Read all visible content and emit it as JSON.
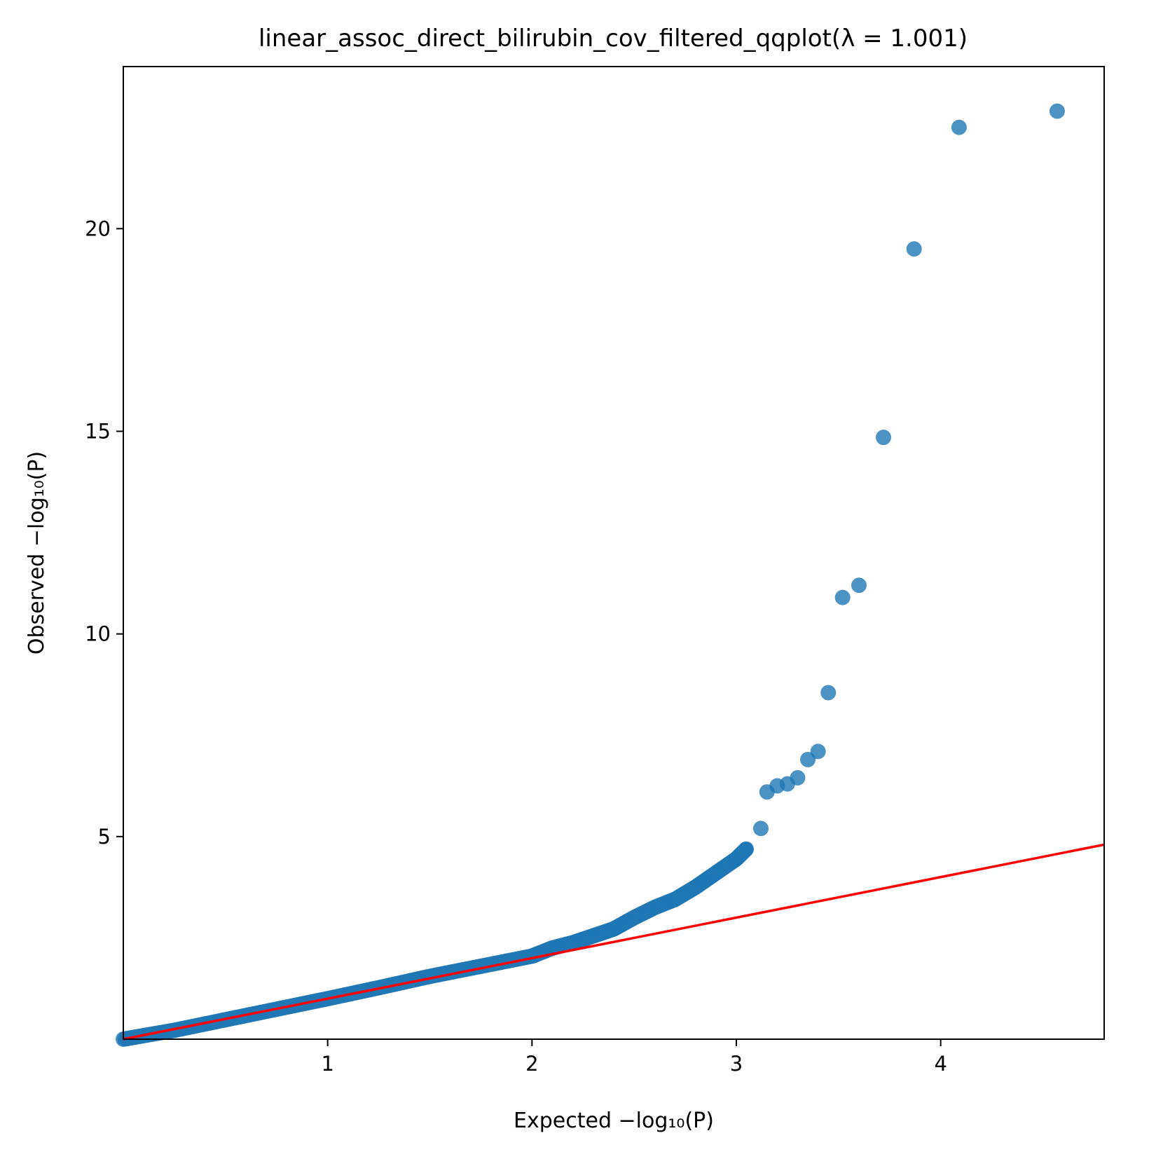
{
  "chart_data": {
    "type": "scatter",
    "title": "linear_assoc_direct_bilirubin_cov_filtered_qqplot(λ = 1.001)",
    "xlabel": "Expected −log₁₀(P)",
    "ylabel": "Observed −log₁₀(P)",
    "xlim": [
      0,
      4.8
    ],
    "ylim": [
      0,
      24
    ],
    "x_ticks": [
      1,
      2,
      3,
      4
    ],
    "y_ticks": [
      5,
      10,
      15,
      20
    ],
    "x_tick_labels": [
      "1",
      "2",
      "3",
      "4"
    ],
    "y_tick_labels": [
      "5",
      "10",
      "15",
      "20"
    ],
    "grid": false,
    "legend": "none",
    "colors": {
      "points": "#1f77b4",
      "reference_line": "#ff0000",
      "axes": "#000000"
    },
    "reference_line": {
      "from": [
        0,
        0
      ],
      "to": [
        4.8,
        4.8
      ]
    },
    "dense_band": {
      "description": "continuous band of overlapping points",
      "x": [
        0.0,
        0.25,
        0.5,
        0.75,
        1.0,
        1.25,
        1.5,
        1.75,
        2.0,
        2.1,
        2.2,
        2.3,
        2.4,
        2.5,
        2.6,
        2.7,
        2.8,
        2.9,
        3.0,
        3.05
      ],
      "y": [
        0.0,
        0.22,
        0.48,
        0.74,
        1.0,
        1.27,
        1.55,
        1.8,
        2.05,
        2.25,
        2.38,
        2.55,
        2.72,
        3.0,
        3.25,
        3.45,
        3.75,
        4.1,
        4.45,
        4.7
      ]
    },
    "outliers": {
      "x": [
        3.12,
        3.15,
        3.2,
        3.25,
        3.3,
        3.35,
        3.4,
        3.45,
        3.52,
        3.6,
        3.72,
        3.87,
        4.09,
        4.57
      ],
      "y": [
        5.2,
        6.1,
        6.25,
        6.3,
        6.45,
        6.9,
        7.1,
        8.55,
        10.9,
        11.2,
        14.85,
        19.5,
        22.5,
        22.9
      ]
    }
  }
}
